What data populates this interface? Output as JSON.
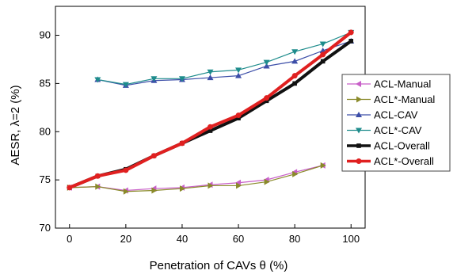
{
  "chart_data": {
    "type": "line",
    "xlabel": "Penetration of CAVs θ (%)",
    "ylabel": "AESR, λ=2 (%)",
    "xlim": [
      -5,
      105
    ],
    "ylim": [
      70,
      93
    ],
    "xticks": [
      0,
      20,
      40,
      60,
      80,
      100
    ],
    "yticks": [
      70,
      75,
      80,
      85,
      90
    ],
    "legend_position": "right",
    "grid": false,
    "series": [
      {
        "name": "ACL-Manual",
        "color": "#c85fc8",
        "marker": "triangle-left",
        "x": [
          0,
          10,
          20,
          30,
          40,
          50,
          60,
          70,
          80,
          90
        ],
        "y": [
          74.2,
          74.3,
          73.9,
          74.1,
          74.2,
          74.5,
          74.7,
          75.0,
          75.8,
          76.5
        ]
      },
      {
        "name": "ACL*-Manual",
        "color": "#8a8a2a",
        "marker": "triangle-right",
        "x": [
          0,
          10,
          20,
          30,
          40,
          50,
          60,
          70,
          80,
          90
        ],
        "y": [
          74.2,
          74.3,
          73.8,
          73.9,
          74.1,
          74.4,
          74.4,
          74.8,
          75.6,
          76.5
        ]
      },
      {
        "name": "ACL-CAV",
        "color": "#3c4ea8",
        "marker": "triangle-up",
        "x": [
          10,
          20,
          30,
          40,
          50,
          60,
          70,
          80,
          90,
          100
        ],
        "y": [
          85.4,
          84.8,
          85.3,
          85.4,
          85.6,
          85.8,
          86.8,
          87.3,
          88.4,
          89.4
        ]
      },
      {
        "name": "ACL*-CAV",
        "color": "#1e8c8c",
        "marker": "triangle-down",
        "x": [
          10,
          20,
          30,
          40,
          50,
          60,
          70,
          80,
          90,
          100
        ],
        "y": [
          85.4,
          84.9,
          85.5,
          85.5,
          86.2,
          86.4,
          87.2,
          88.3,
          89.1,
          90.3
        ]
      },
      {
        "name": "ACL-Overall",
        "color": "#111111",
        "marker": "square",
        "x": [
          0,
          10,
          20,
          30,
          40,
          50,
          60,
          70,
          80,
          90,
          100
        ],
        "y": [
          74.2,
          75.4,
          76.1,
          77.5,
          78.8,
          80.1,
          81.4,
          83.2,
          85.0,
          87.3,
          89.4
        ]
      },
      {
        "name": "ACL*-Overall",
        "color": "#e02020",
        "marker": "circle",
        "x": [
          0,
          10,
          20,
          30,
          40,
          50,
          60,
          70,
          80,
          90,
          100
        ],
        "y": [
          74.2,
          75.4,
          76.0,
          77.5,
          78.8,
          80.5,
          81.7,
          83.5,
          85.8,
          88.0,
          90.3
        ]
      }
    ]
  }
}
